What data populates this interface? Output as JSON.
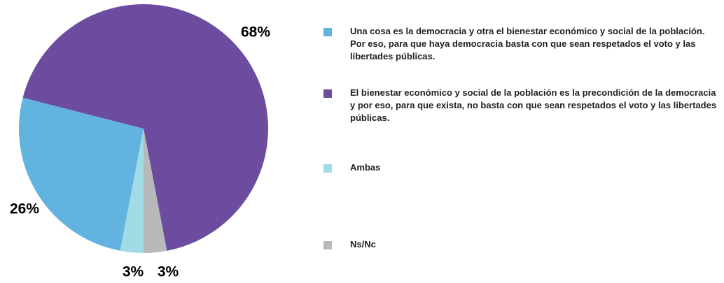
{
  "chart_data": {
    "type": "pie",
    "series": [
      {
        "name": "Una cosa es la democracia y otra el bienestar económico y social de la población. Por eso, para que haya democracia basta con que sean respetados el voto y las libertades públicas.",
        "color": "#62b3e0"
      },
      {
        "name": "El bienestar económico y social de la población es la precondición de la democracia y por eso, para que exista, no basta con que sean respetados el voto y las libertades públicas.",
        "color": "#6c4c9e"
      },
      {
        "name": "Ambas",
        "color": "#a0dbe6"
      },
      {
        "name": "Ns/Nc",
        "color": "#b7b9bb"
      }
    ],
    "values": [
      26,
      68,
      3,
      3
    ],
    "value_labels": [
      "26%",
      "68%",
      "3%",
      "3%"
    ]
  }
}
